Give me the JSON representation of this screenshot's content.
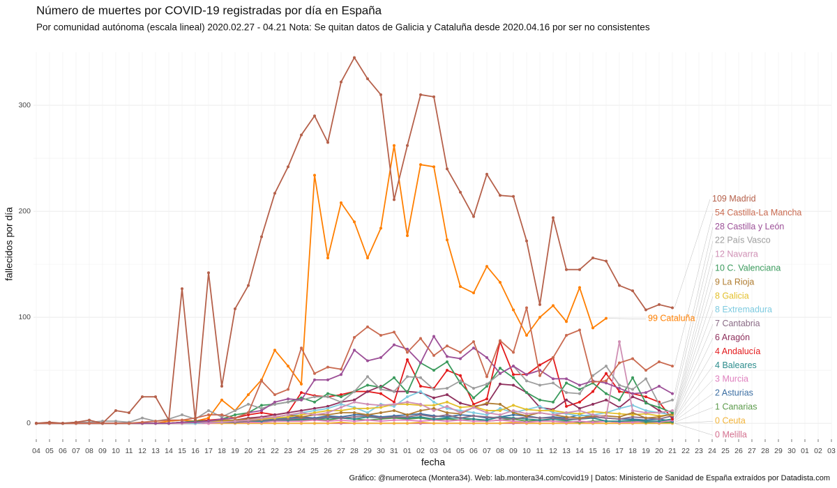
{
  "chart_data": {
    "type": "line",
    "title": "Número de muertes por COVID-19 registradas por día en España",
    "subtitle": "Por comunidad autónoma (escala lineal) 2020.02.27 - 04.21 Nota: Se quitan datos de Galicia y Cataluña desde 2020.04.16 por ser no consistentes",
    "x_label": "fecha",
    "y_label": "fallecidos por día",
    "caption": "Gráfico: @numeroteca (Montera34). Web: lab.montera34.com/covid19 | Datos: Ministerio de Sanidad de España extraídos por Datadista.com",
    "categories": [
      "04",
      "05",
      "06",
      "07",
      "08",
      "09",
      "10",
      "11",
      "12",
      "13",
      "14",
      "15",
      "16",
      "17",
      "18",
      "19",
      "20",
      "21",
      "22",
      "23",
      "24",
      "25",
      "26",
      "27",
      "28",
      "29",
      "30",
      "31",
      "01",
      "02",
      "03",
      "04",
      "05",
      "06",
      "07",
      "08",
      "09",
      "10",
      "11",
      "12",
      "13",
      "14",
      "15",
      "16",
      "17",
      "18",
      "19",
      "20",
      "21",
      "22",
      "23",
      "24",
      "25",
      "26",
      "27",
      "28",
      "29",
      "30",
      "01",
      "02",
      "03"
    ],
    "ylim": [
      -15,
      350
    ],
    "yticks": [
      0,
      100,
      200,
      300
    ],
    "grid": true,
    "minor_grid": true,
    "series": [
      {
        "name": "Madrid",
        "color": "#b5604a",
        "values": [
          0,
          1,
          0,
          1,
          3,
          0,
          12,
          10,
          25,
          25,
          3,
          127,
          3,
          142,
          35,
          108,
          130,
          176,
          217,
          242,
          272,
          290,
          265,
          322,
          345,
          325,
          310,
          211,
          262,
          310,
          308,
          240,
          218,
          195,
          235,
          215,
          214,
          172,
          112,
          194,
          145,
          145,
          156,
          153,
          130,
          125,
          107,
          112,
          109,
          null,
          null,
          null,
          null,
          null,
          null,
          null,
          null,
          null,
          null,
          null,
          null
        ]
      },
      {
        "name": "Castilla-La Mancha",
        "color": "#c96a50",
        "values": [
          0,
          0,
          0,
          0,
          0,
          0,
          0,
          0,
          1,
          2,
          3,
          3,
          5,
          8,
          8,
          5,
          10,
          40,
          27,
          32,
          71,
          47,
          53,
          51,
          81,
          91,
          83,
          86,
          67,
          80,
          64,
          73,
          67,
          77,
          44,
          78,
          67,
          109,
          45,
          62,
          83,
          88,
          39,
          40,
          57,
          61,
          50,
          58,
          54,
          null,
          null,
          null,
          null,
          null,
          null,
          null,
          null,
          null,
          null,
          null,
          null
        ]
      },
      {
        "name": "Castilla y León",
        "color": "#9c4f97",
        "values": [
          0,
          0,
          0,
          0,
          0,
          0,
          0,
          0,
          0,
          0,
          0,
          1,
          1,
          2,
          4,
          5,
          10,
          12,
          20,
          23,
          22,
          41,
          41,
          46,
          69,
          59,
          62,
          74,
          70,
          57,
          82,
          63,
          61,
          71,
          62,
          47,
          54,
          46,
          50,
          42,
          42,
          36,
          40,
          38,
          33,
          28,
          29,
          35,
          28,
          null,
          null,
          null,
          null,
          null,
          null,
          null,
          null,
          null,
          null,
          null,
          null
        ]
      },
      {
        "name": "País Vasco",
        "color": "#9d9d9d",
        "values": [
          0,
          0,
          0,
          1,
          1,
          2,
          2,
          1,
          5,
          2,
          4,
          8,
          4,
          12,
          6,
          12,
          18,
          14,
          18,
          20,
          22,
          25,
          25,
          20,
          30,
          44,
          32,
          30,
          44,
          43,
          32,
          33,
          40,
          33,
          37,
          47,
          54,
          40,
          36,
          38,
          29,
          28,
          45,
          54,
          36,
          32,
          42,
          18,
          22,
          null,
          null,
          null,
          null,
          null,
          null,
          null,
          null,
          null,
          null,
          null,
          null
        ]
      },
      {
        "name": "Navarra",
        "color": "#cf8fb4",
        "values": [
          0,
          0,
          0,
          0,
          0,
          0,
          0,
          0,
          0,
          0,
          0,
          0,
          1,
          1,
          1,
          2,
          3,
          5,
          6,
          8,
          10,
          8,
          10,
          15,
          20,
          18,
          17,
          18,
          20,
          18,
          12,
          16,
          10,
          15,
          10,
          8,
          12,
          9,
          10,
          8,
          10,
          12,
          8,
          6,
          77,
          12,
          10,
          10,
          12,
          null,
          null,
          null,
          null,
          null,
          null,
          null,
          null,
          null,
          null,
          null,
          null
        ]
      },
      {
        "name": "C. Valenciana",
        "color": "#3a9a5c",
        "values": [
          0,
          0,
          0,
          0,
          0,
          0,
          0,
          0,
          0,
          0,
          0,
          1,
          2,
          2,
          4,
          8,
          10,
          17,
          18,
          20,
          24,
          20,
          28,
          25,
          30,
          36,
          34,
          43,
          29,
          57,
          50,
          58,
          38,
          24,
          35,
          52,
          43,
          29,
          22,
          20,
          38,
          32,
          38,
          28,
          22,
          43,
          19,
          15,
          10,
          null,
          null,
          null,
          null,
          null,
          null,
          null,
          null,
          null,
          null,
          null,
          null
        ]
      },
      {
        "name": "La Rioja",
        "color": "#b07c30",
        "values": [
          0,
          0,
          0,
          0,
          0,
          0,
          0,
          0,
          0,
          0,
          0,
          1,
          1,
          2,
          3,
          3,
          4,
          5,
          6,
          8,
          6,
          8,
          8,
          10,
          10,
          8,
          10,
          12,
          8,
          12,
          14,
          10,
          9,
          15,
          19,
          18,
          10,
          7,
          10,
          8,
          6,
          5,
          7,
          7,
          6,
          10,
          5,
          6,
          9,
          null,
          null,
          null,
          null,
          null,
          null,
          null,
          null,
          null,
          null,
          null,
          null
        ]
      },
      {
        "name": "Galicia",
        "color": "#e3bf2a",
        "values": [
          0,
          0,
          0,
          0,
          0,
          0,
          0,
          0,
          0,
          0,
          0,
          0,
          1,
          1,
          2,
          2,
          3,
          4,
          5,
          6,
          8,
          10,
          12,
          12,
          14,
          14,
          15,
          18,
          18,
          17,
          17,
          20,
          15,
          16,
          12,
          12,
          17,
          13,
          12,
          12,
          10,
          9,
          11,
          10,
          9,
          8,
          9,
          7,
          8,
          null,
          null,
          null,
          null,
          null,
          null,
          null,
          null,
          null,
          null,
          null,
          null
        ]
      },
      {
        "name": "Extremadura",
        "color": "#7ecbe0",
        "values": [
          0,
          0,
          0,
          0,
          0,
          0,
          0,
          0,
          0,
          0,
          0,
          0,
          0,
          1,
          2,
          2,
          3,
          4,
          5,
          6,
          10,
          12,
          14,
          18,
          15,
          10,
          18,
          16,
          25,
          30,
          20,
          14,
          12,
          10,
          8,
          14,
          10,
          13,
          16,
          10,
          9,
          7,
          8,
          10,
          14,
          17,
          12,
          10,
          8,
          null,
          null,
          null,
          null,
          null,
          null,
          null,
          null,
          null,
          null,
          null,
          null
        ]
      },
      {
        "name": "Cantabria",
        "color": "#8a6b86",
        "values": [
          0,
          0,
          0,
          0,
          0,
          0,
          0,
          0,
          0,
          0,
          0,
          0,
          0,
          1,
          1,
          1,
          2,
          3,
          3,
          4,
          5,
          4,
          6,
          5,
          6,
          7,
          5,
          6,
          6,
          8,
          6,
          8,
          5,
          7,
          6,
          5,
          4,
          6,
          5,
          5,
          4,
          4,
          6,
          5,
          4,
          6,
          5,
          4,
          7,
          null,
          null,
          null,
          null,
          null,
          null,
          null,
          null,
          null,
          null,
          null,
          null
        ]
      },
      {
        "name": "Aragón",
        "color": "#8e2f5c",
        "values": [
          0,
          0,
          0,
          0,
          0,
          0,
          0,
          0,
          0,
          0,
          0,
          1,
          1,
          1,
          2,
          3,
          5,
          6,
          8,
          10,
          12,
          14,
          16,
          20,
          22,
          30,
          35,
          30,
          30,
          29,
          24,
          27,
          19,
          16,
          18,
          37,
          36,
          29,
          15,
          13,
          22,
          14,
          18,
          22,
          15,
          25,
          20,
          12,
          6,
          null,
          null,
          null,
          null,
          null,
          null,
          null,
          null,
          null,
          null,
          null,
          null
        ]
      },
      {
        "name": "Andalucía",
        "color": "#e31a1c",
        "values": [
          0,
          0,
          0,
          0,
          0,
          0,
          0,
          0,
          0,
          0,
          0,
          1,
          2,
          3,
          4,
          5,
          8,
          10,
          8,
          10,
          29,
          26,
          25,
          27,
          30,
          30,
          28,
          20,
          60,
          35,
          33,
          50,
          45,
          18,
          23,
          77,
          46,
          46,
          55,
          62,
          16,
          20,
          30,
          47,
          30,
          28,
          25,
          20,
          4,
          null,
          null,
          null,
          null,
          null,
          null,
          null,
          null,
          null,
          null,
          null,
          null
        ]
      },
      {
        "name": "Baleares",
        "color": "#2b8c8c",
        "values": [
          0,
          0,
          0,
          0,
          0,
          0,
          0,
          0,
          0,
          0,
          0,
          0,
          0,
          1,
          1,
          1,
          2,
          2,
          3,
          3,
          4,
          4,
          5,
          5,
          4,
          6,
          5,
          6,
          5,
          6,
          4,
          5,
          5,
          4,
          3,
          6,
          5,
          4,
          3,
          4,
          3,
          4,
          5,
          2,
          2,
          3,
          2,
          2,
          4,
          null,
          null,
          null,
          null,
          null,
          null,
          null,
          null,
          null,
          null,
          null,
          null
        ]
      },
      {
        "name": "Murcia",
        "color": "#df7fbe",
        "values": [
          0,
          0,
          0,
          0,
          0,
          0,
          0,
          0,
          0,
          0,
          0,
          0,
          0,
          0,
          1,
          1,
          1,
          1,
          2,
          2,
          2,
          3,
          2,
          3,
          2,
          3,
          2,
          3,
          3,
          2,
          3,
          2,
          3,
          2,
          2,
          3,
          2,
          1,
          2,
          2,
          1,
          2,
          1,
          2,
          1,
          1,
          2,
          1,
          3,
          null,
          null,
          null,
          null,
          null,
          null,
          null,
          null,
          null,
          null,
          null,
          null
        ]
      },
      {
        "name": "Asturias",
        "color": "#3d6fa3",
        "values": [
          0,
          0,
          0,
          0,
          0,
          0,
          0,
          0,
          0,
          0,
          0,
          0,
          1,
          1,
          1,
          2,
          2,
          3,
          4,
          5,
          6,
          5,
          7,
          6,
          8,
          8,
          6,
          7,
          8,
          9,
          7,
          6,
          8,
          7,
          5,
          6,
          8,
          7,
          5,
          6,
          5,
          8,
          6,
          5,
          4,
          4,
          3,
          4,
          2,
          null,
          null,
          null,
          null,
          null,
          null,
          null,
          null,
          null,
          null,
          null,
          null
        ]
      },
      {
        "name": "Canarias",
        "color": "#5b9a4a",
        "values": [
          0,
          0,
          0,
          0,
          0,
          0,
          0,
          0,
          0,
          0,
          0,
          0,
          0,
          1,
          1,
          1,
          1,
          2,
          2,
          3,
          3,
          4,
          3,
          5,
          4,
          3,
          4,
          5,
          4,
          5,
          3,
          4,
          3,
          4,
          2,
          3,
          4,
          2,
          3,
          2,
          2,
          1,
          2,
          2,
          1,
          2,
          1,
          1,
          1,
          null,
          null,
          null,
          null,
          null,
          null,
          null,
          null,
          null,
          null,
          null,
          null
        ]
      },
      {
        "name": "Ceuta",
        "color": "#f2b43a",
        "values": [
          0,
          0,
          0,
          0,
          0,
          0,
          0,
          0,
          0,
          0,
          0,
          0,
          0,
          0,
          0,
          0,
          0,
          0,
          0,
          0,
          0,
          0,
          0,
          1,
          0,
          0,
          0,
          0,
          0,
          1,
          0,
          0,
          0,
          0,
          0,
          0,
          1,
          0,
          0,
          0,
          0,
          0,
          0,
          0,
          0,
          0,
          0,
          0,
          0,
          null,
          null,
          null,
          null,
          null,
          null,
          null,
          null,
          null,
          null,
          null,
          null
        ]
      },
      {
        "name": "Melilla",
        "color": "#d4708f",
        "values": [
          0,
          0,
          0,
          0,
          0,
          0,
          0,
          0,
          0,
          0,
          0,
          0,
          0,
          0,
          0,
          0,
          0,
          0,
          0,
          0,
          0,
          0,
          0,
          0,
          0,
          0,
          0,
          0,
          0,
          0,
          0,
          0,
          0,
          0,
          0,
          0,
          0,
          0,
          0,
          0,
          0,
          0,
          0,
          0,
          0,
          0,
          0,
          0,
          0,
          null,
          null,
          null,
          null,
          null,
          null,
          null,
          null,
          null,
          null,
          null,
          null
        ]
      },
      {
        "name": "Cataluña",
        "color": "#ff7f00",
        "values": [
          0,
          0,
          0,
          0,
          0,
          0,
          0,
          0,
          0,
          0,
          2,
          3,
          2,
          5,
          22,
          12,
          27,
          41,
          69,
          54,
          37,
          234,
          156,
          208,
          190,
          156,
          184,
          262,
          177,
          244,
          242,
          173,
          129,
          123,
          148,
          133,
          107,
          83,
          100,
          111,
          96,
          128,
          90,
          99,
          null,
          null,
          null,
          null,
          null,
          null,
          null,
          null,
          null,
          null,
          null,
          null,
          null,
          null,
          null,
          null,
          null
        ]
      }
    ]
  }
}
